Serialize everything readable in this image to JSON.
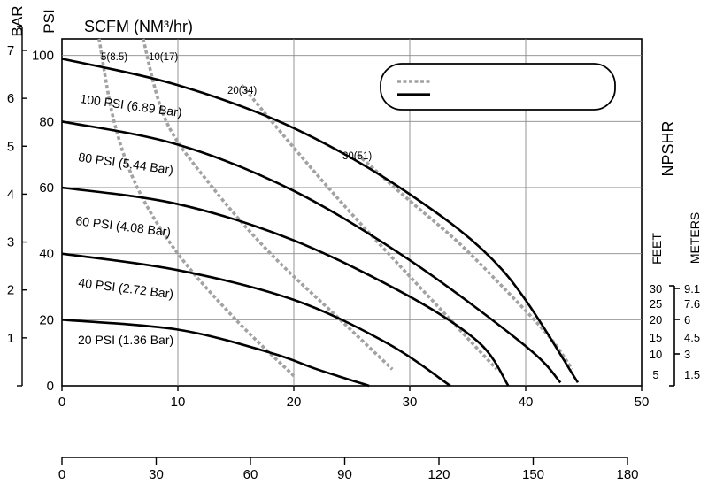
{
  "chart_data": {
    "type": "line",
    "top_label": "SCFM (NM³/hr)",
    "left_axis_labels": {
      "bar": "BAR",
      "psi": "PSI"
    },
    "right_axis_title": "NPSHR",
    "right_axis_units": {
      "feet": "FEET",
      "meters": "METERS"
    },
    "x_axis": {
      "ticks": [
        0,
        10,
        20,
        30,
        40,
        50
      ],
      "range": [
        0,
        50
      ]
    },
    "x_axis_secondary": {
      "ticks": [
        0,
        30,
        60,
        90,
        120,
        150,
        180
      ],
      "range": [
        0,
        180
      ]
    },
    "psi_axis": {
      "ticks": [
        0,
        20,
        40,
        60,
        80,
        100
      ],
      "range": [
        0,
        105
      ]
    },
    "bar_axis": {
      "ticks": [
        1,
        2,
        3,
        4,
        5,
        6,
        7
      ]
    },
    "npshr_axis": {
      "feet_ticks": [
        "30",
        "25",
        "20",
        "15",
        "10",
        "5"
      ],
      "meter_ticks": [
        "9.1",
        "7.6",
        "6",
        "4.5",
        "3",
        "1.5"
      ]
    },
    "grid": true,
    "legend": {
      "position": "top-right",
      "entries": [
        "",
        ""
      ],
      "styles": [
        "dashed",
        "solid"
      ]
    },
    "pressure_curves": [
      {
        "label": "100 PSI (6.89 Bar)",
        "x": [
          0,
          10,
          20,
          30,
          38,
          44.5
        ],
        "y": [
          99,
          91,
          78,
          58,
          35,
          1
        ]
      },
      {
        "label": "80 PSI (5.44 Bar)",
        "x": [
          0,
          10,
          20,
          30,
          40,
          43
        ],
        "y": [
          80,
          73,
          59,
          38,
          12,
          1
        ]
      },
      {
        "label": "60 PSI (4.08 Bar)",
        "x": [
          0,
          10,
          20,
          30,
          36,
          38.5
        ],
        "y": [
          60,
          55,
          44,
          27,
          13,
          0
        ]
      },
      {
        "label": "40 PSI (2.72 Bar)",
        "x": [
          0,
          10,
          20,
          28,
          33.5
        ],
        "y": [
          40,
          35,
          26,
          13,
          0
        ]
      },
      {
        "label": "20 PSI (1.36 Bar)",
        "x": [
          0,
          10,
          18,
          22,
          26.5
        ],
        "y": [
          20,
          17,
          10,
          5,
          0
        ]
      }
    ],
    "air_consumption_curves": [
      {
        "label": "5(8.5)",
        "x": [
          3.2,
          4.5,
          6.5,
          10,
          15,
          20
        ],
        "y": [
          105,
          80,
          60,
          40,
          20,
          3
        ]
      },
      {
        "label": "10(17)",
        "x": [
          7,
          9,
          13,
          18,
          24,
          28.5
        ],
        "y": [
          105,
          80,
          60,
          40,
          20,
          5
        ]
      },
      {
        "label": "20(34)",
        "x": [
          15.5,
          20.5,
          25,
          29.5,
          33.5,
          37.5
        ],
        "y": [
          91,
          70,
          52,
          35,
          20,
          5
        ]
      },
      {
        "label": "30(51)",
        "x": [
          25.5,
          30,
          34,
          38,
          42,
          44
        ],
        "y": [
          70,
          56,
          44,
          30,
          15,
          5
        ]
      }
    ]
  }
}
